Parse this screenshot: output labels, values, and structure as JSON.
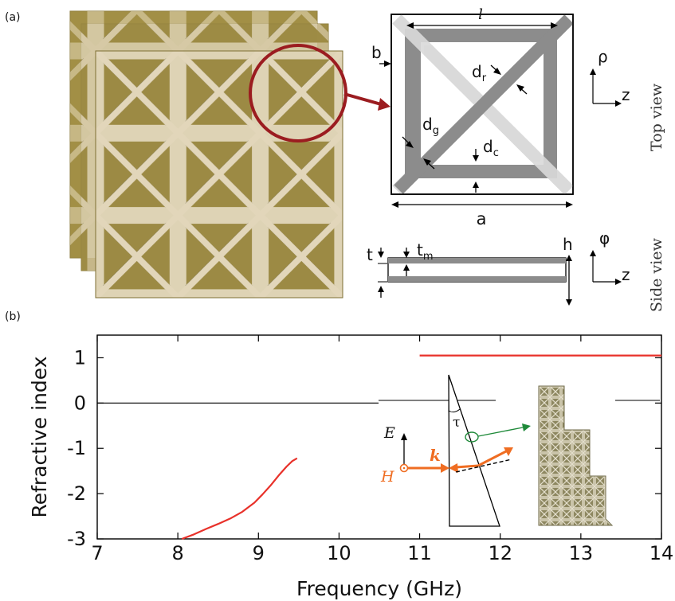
{
  "panel_a": {
    "label": "(a)",
    "top_view": {
      "labels": {
        "l": "l",
        "b": "b",
        "dr": "d",
        "dr_sub": "r",
        "dg": "d",
        "dg_sub": "g",
        "dc": "d",
        "dc_sub": "c",
        "a": "a"
      },
      "axes": {
        "vertical": "ρ",
        "horizontal": "z"
      },
      "caption": "Top view"
    },
    "side_view": {
      "labels": {
        "t": "t",
        "tm": "t",
        "tm_sub": "m",
        "h": "h"
      },
      "axes": {
        "vertical": "φ",
        "horizontal": "z"
      },
      "caption": "Side view"
    }
  },
  "panel_b": {
    "label": "(b)",
    "inset": {
      "E": "E",
      "H": "H",
      "k": "k",
      "tau": "τ"
    }
  },
  "chart_data": {
    "type": "line",
    "xlabel": "Frequency (GHz)",
    "ylabel": "Refractive index",
    "xlim": [
      7,
      14
    ],
    "ylim": [
      -3,
      1.5
    ],
    "xticks": [
      "7",
      "8",
      "9",
      "10",
      "11",
      "12",
      "13",
      "14"
    ],
    "yticks": [
      "1",
      "0",
      "-1",
      "-2",
      "-3"
    ],
    "series": [
      {
        "color": "#e8312a",
        "x": [
          8.05,
          8.2,
          8.35,
          8.5,
          8.65,
          8.8,
          8.95,
          9.05,
          9.15,
          9.25,
          9.35,
          9.42,
          9.48
        ],
        "y": [
          -3.0,
          -2.9,
          -2.78,
          -2.67,
          -2.55,
          -2.4,
          -2.2,
          -2.02,
          -1.82,
          -1.6,
          -1.4,
          -1.28,
          -1.22
        ]
      },
      {
        "color": "#e8312a",
        "x": [
          11.0,
          14.0
        ],
        "y": [
          1.05,
          1.05
        ]
      }
    ],
    "reference_line": {
      "y": 0,
      "color": "#000000"
    },
    "colors": {
      "data": "#e8312a",
      "axis": "#000000",
      "arrow_orange": "#ef6d22",
      "arrow_green": "#1f8a3a"
    }
  }
}
